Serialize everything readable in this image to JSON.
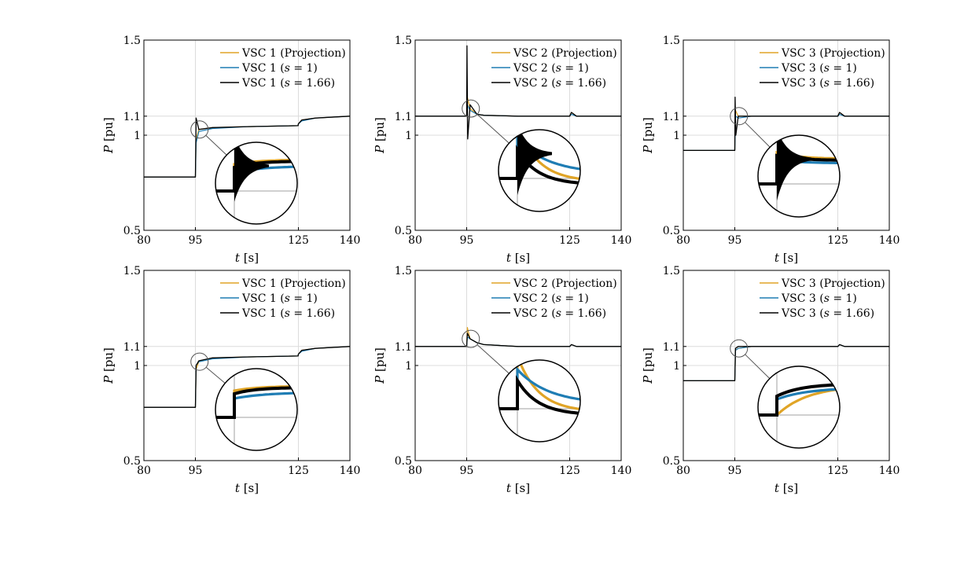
{
  "figure": {
    "colors": {
      "projection": "#E0A426",
      "s1": "#1F7DB4",
      "s166": "#000000",
      "grid": "#dcdcdc"
    }
  },
  "chart_data": [
    {
      "type": "line",
      "title": "",
      "xlabel": "t [s]",
      "ylabel": "P [pu]",
      "xlim": [
        80,
        140
      ],
      "ylim": [
        0.5,
        1.5
      ],
      "xticks": [
        "80",
        "95",
        "125",
        "140"
      ],
      "yticks": [
        "0.5",
        "1",
        "1.1",
        "1.5"
      ],
      "grid": true,
      "legend_position": "top-right",
      "zoom_inset": "circular, at t≈96 s",
      "series": [
        {
          "name": "VSC 1 (Projection)",
          "x": [
            80,
            95,
            95.2,
            96,
            100,
            110,
            124.9,
            125,
            126,
            130,
            140
          ],
          "y": [
            0.78,
            0.78,
            0.98,
            1.03,
            1.04,
            1.045,
            1.05,
            1.06,
            1.08,
            1.09,
            1.1
          ]
        },
        {
          "name": "VSC 1 (s = 1)",
          "x": [
            80,
            95,
            95.2,
            96,
            100,
            110,
            124.9,
            125,
            126,
            130,
            140
          ],
          "y": [
            0.78,
            0.78,
            0.96,
            1.02,
            1.035,
            1.045,
            1.05,
            1.06,
            1.075,
            1.09,
            1.1
          ]
        },
        {
          "name": "VSC 1 (s = 1.66)",
          "x": [
            80,
            95,
            95.2,
            96,
            100,
            110,
            124.9,
            125,
            126,
            130,
            140
          ],
          "y": [
            0.78,
            0.78,
            1.09,
            1.03,
            1.04,
            1.045,
            1.05,
            1.06,
            1.08,
            1.09,
            1.1
          ]
        }
      ]
    },
    {
      "type": "line",
      "title": "",
      "xlabel": "t [s]",
      "ylabel": "P [pu]",
      "xlim": [
        80,
        140
      ],
      "ylim": [
        0.5,
        1.5
      ],
      "xticks": [
        "80",
        "95",
        "125",
        "140"
      ],
      "yticks": [
        "0.5",
        "1",
        "1.1",
        "1.5"
      ],
      "grid": true,
      "legend_position": "top-right",
      "zoom_inset": "circular, at t≈96 s",
      "series": [
        {
          "name": "VSC 2 (Projection)",
          "x": [
            80,
            95,
            95.2,
            96,
            98,
            100,
            110,
            125,
            125.5,
            127,
            140
          ],
          "y": [
            1.1,
            1.1,
            1.2,
            1.14,
            1.11,
            1.105,
            1.1,
            1.1,
            1.12,
            1.1,
            1.1
          ]
        },
        {
          "name": "VSC 2 (s = 1)",
          "x": [
            80,
            95,
            95.2,
            96,
            98,
            100,
            110,
            125,
            125.5,
            127,
            140
          ],
          "y": [
            1.1,
            1.1,
            1.16,
            1.13,
            1.11,
            1.105,
            1.1,
            1.1,
            1.11,
            1.1,
            1.1
          ]
        },
        {
          "name": "VSC 2 (s = 1.66)",
          "x": [
            80,
            95,
            95.1,
            95.3,
            96,
            98,
            100,
            110,
            125,
            125.5,
            127,
            140
          ],
          "y": [
            1.1,
            1.1,
            1.47,
            0.98,
            1.16,
            1.11,
            1.105,
            1.1,
            1.1,
            1.12,
            1.1,
            1.1
          ]
        }
      ]
    },
    {
      "type": "line",
      "title": "",
      "xlabel": "t [s]",
      "ylabel": "P [pu]",
      "xlim": [
        80,
        140
      ],
      "ylim": [
        0.5,
        1.5
      ],
      "xticks": [
        "80",
        "95",
        "125",
        "140"
      ],
      "yticks": [
        "0.5",
        "1",
        "1.1",
        "1.5"
      ],
      "grid": true,
      "legend_position": "top-right",
      "zoom_inset": "circular, at t≈96 s",
      "series": [
        {
          "name": "VSC 3 (Projection)",
          "x": [
            80,
            95,
            95.2,
            96,
            100,
            110,
            125,
            125.5,
            127,
            140
          ],
          "y": [
            0.92,
            0.92,
            1.13,
            1.1,
            1.1,
            1.1,
            1.1,
            1.12,
            1.1,
            1.1
          ]
        },
        {
          "name": "VSC 3 (s = 1)",
          "x": [
            80,
            95,
            95.2,
            96,
            100,
            110,
            125,
            125.5,
            127,
            140
          ],
          "y": [
            0.92,
            0.92,
            1.1,
            1.09,
            1.1,
            1.1,
            1.1,
            1.11,
            1.1,
            1.1
          ]
        },
        {
          "name": "VSC 3 (s = 1.66)",
          "x": [
            80,
            95,
            95.1,
            95.3,
            96,
            100,
            110,
            125,
            125.5,
            127,
            140
          ],
          "y": [
            0.92,
            0.92,
            1.2,
            1.0,
            1.1,
            1.1,
            1.1,
            1.1,
            1.12,
            1.1,
            1.1
          ]
        }
      ]
    },
    {
      "type": "line",
      "title": "",
      "xlabel": "t [s]",
      "ylabel": "P [pu]",
      "xlim": [
        80,
        140
      ],
      "ylim": [
        0.5,
        1.5
      ],
      "xticks": [
        "80",
        "95",
        "125",
        "140"
      ],
      "yticks": [
        "0.5",
        "1",
        "1.1",
        "1.5"
      ],
      "grid": true,
      "legend_position": "top-right",
      "zoom_inset": "circular, at t≈96 s",
      "series": [
        {
          "name": "VSC 1 (Projection)",
          "x": [
            80,
            95,
            95.2,
            96,
            100,
            110,
            124.9,
            125,
            126,
            130,
            140
          ],
          "y": [
            0.78,
            0.78,
            0.98,
            1.02,
            1.04,
            1.045,
            1.05,
            1.06,
            1.08,
            1.09,
            1.1
          ]
        },
        {
          "name": "VSC 1 (s = 1)",
          "x": [
            80,
            95,
            95.2,
            96,
            100,
            110,
            124.9,
            125,
            126,
            130,
            140
          ],
          "y": [
            0.78,
            0.78,
            1.0,
            1.02,
            1.035,
            1.045,
            1.05,
            1.06,
            1.075,
            1.09,
            1.1
          ]
        },
        {
          "name": "VSC 1 (s = 1.66)",
          "x": [
            80,
            95,
            95.2,
            96,
            100,
            110,
            124.9,
            125,
            126,
            130,
            140
          ],
          "y": [
            0.78,
            0.78,
            1.0,
            1.025,
            1.04,
            1.045,
            1.05,
            1.06,
            1.08,
            1.09,
            1.1
          ]
        }
      ]
    },
    {
      "type": "line",
      "title": "",
      "xlabel": "t [s]",
      "ylabel": "P [pu]",
      "xlim": [
        80,
        140
      ],
      "ylim": [
        0.5,
        1.5
      ],
      "xticks": [
        "80",
        "95",
        "125",
        "140"
      ],
      "yticks": [
        "0.5",
        "1",
        "1.1",
        "1.5"
      ],
      "grid": true,
      "legend_position": "top-right",
      "zoom_inset": "circular, at t≈96 s",
      "series": [
        {
          "name": "VSC 2 (Projection)",
          "x": [
            80,
            95,
            95.2,
            96,
            98,
            100,
            110,
            125,
            125.5,
            127,
            140
          ],
          "y": [
            1.1,
            1.1,
            1.2,
            1.14,
            1.12,
            1.11,
            1.1,
            1.1,
            1.11,
            1.1,
            1.1
          ]
        },
        {
          "name": "VSC 2 (s = 1)",
          "x": [
            80,
            95,
            95.2,
            96,
            98,
            100,
            110,
            125,
            125.5,
            127,
            140
          ],
          "y": [
            1.1,
            1.1,
            1.15,
            1.14,
            1.12,
            1.11,
            1.1,
            1.1,
            1.11,
            1.1,
            1.1
          ]
        },
        {
          "name": "VSC 2 (s = 1.66)",
          "x": [
            80,
            95,
            95.2,
            96,
            98,
            100,
            110,
            125,
            125.5,
            127,
            140
          ],
          "y": [
            1.1,
            1.1,
            1.17,
            1.14,
            1.12,
            1.11,
            1.1,
            1.1,
            1.11,
            1.1,
            1.1
          ]
        }
      ]
    },
    {
      "type": "line",
      "title": "",
      "xlabel": "t [s]",
      "ylabel": "P [pu]",
      "xlim": [
        80,
        140
      ],
      "ylim": [
        0.5,
        1.5
      ],
      "xticks": [
        "80",
        "95",
        "125",
        "140"
      ],
      "yticks": [
        "0.5",
        "1",
        "1.1",
        "1.5"
      ],
      "grid": true,
      "legend_position": "top-right",
      "zoom_inset": "circular, at t≈96 s",
      "series": [
        {
          "name": "VSC 3 (Projection)",
          "x": [
            80,
            95,
            95.2,
            96,
            100,
            110,
            125,
            125.5,
            127,
            140
          ],
          "y": [
            0.92,
            0.92,
            1.08,
            1.09,
            1.1,
            1.1,
            1.1,
            1.11,
            1.1,
            1.1
          ]
        },
        {
          "name": "VSC 3 (s = 1)",
          "x": [
            80,
            95,
            95.2,
            96,
            100,
            110,
            125,
            125.5,
            127,
            140
          ],
          "y": [
            0.92,
            0.92,
            1.08,
            1.09,
            1.1,
            1.1,
            1.1,
            1.11,
            1.1,
            1.1
          ]
        },
        {
          "name": "VSC 3 (s = 1.66)",
          "x": [
            80,
            95,
            95.2,
            96,
            100,
            110,
            125,
            125.5,
            127,
            140
          ],
          "y": [
            0.92,
            0.92,
            1.09,
            1.1,
            1.1,
            1.1,
            1.1,
            1.11,
            1.1,
            1.1
          ]
        }
      ]
    }
  ]
}
